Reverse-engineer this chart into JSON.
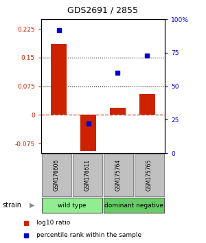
{
  "title": "GDS2691 / 2855",
  "samples": [
    "GSM176606",
    "GSM176611",
    "GSM175764",
    "GSM175765"
  ],
  "log10_ratio": [
    0.185,
    -0.095,
    0.018,
    0.055
  ],
  "percentile_rank": [
    92,
    22,
    60,
    73
  ],
  "groups": [
    {
      "label": "wild type",
      "samples": [
        0,
        1
      ],
      "color": "#90EE90"
    },
    {
      "label": "dominant negative",
      "samples": [
        2,
        3
      ],
      "color": "#66CC66"
    }
  ],
  "bar_color": "#CC2200",
  "dot_color": "#0000CC",
  "ylim_left": [
    -0.1,
    0.25
  ],
  "ylim_right": [
    0,
    100
  ],
  "yticks_left": [
    -0.075,
    0,
    0.075,
    0.15,
    0.225
  ],
  "yticks_right": [
    0,
    25,
    50,
    75,
    100
  ],
  "ytick_labels_left": [
    "-0.075",
    "0",
    "0.075",
    "0.15",
    "0.225"
  ],
  "ytick_labels_right": [
    "0",
    "25",
    "50",
    "75",
    "100%"
  ],
  "hlines": [
    0.075,
    0.15
  ],
  "background_color": "#ffffff",
  "legend_red": "log10 ratio",
  "legend_blue": "percentile rank within the sample",
  "strain_label": "strain",
  "bar_width": 0.55,
  "gray_box_color": "#C0C0C0",
  "sample_box_edge": "#888888"
}
